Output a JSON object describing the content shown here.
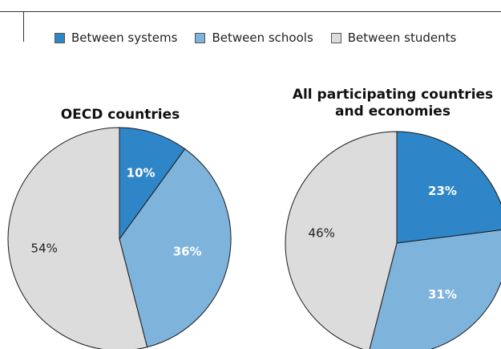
{
  "colors": {
    "between_systems": "#2e86c8",
    "between_schools": "#7eb3dc",
    "between_students": "#dcdcdc"
  },
  "legend": [
    {
      "label": "Between systems",
      "key": "between_systems"
    },
    {
      "label": "Between schools",
      "key": "between_schools"
    },
    {
      "label": "Between students",
      "key": "between_students"
    }
  ],
  "chart_data": [
    {
      "type": "pie",
      "title": "OECD countries",
      "slices": [
        {
          "name": "Between systems",
          "value": 10,
          "label": "10%"
        },
        {
          "name": "Between schools",
          "value": 36,
          "label": "36%"
        },
        {
          "name": "Between students",
          "value": 54,
          "label": "54%"
        }
      ]
    },
    {
      "type": "pie",
      "title": "All participating countries and economies",
      "slices": [
        {
          "name": "Between systems",
          "value": 23,
          "label": "23%"
        },
        {
          "name": "Between schools",
          "value": 31,
          "label": "31%"
        },
        {
          "name": "Between students",
          "value": 46,
          "label": "46%"
        }
      ]
    }
  ]
}
